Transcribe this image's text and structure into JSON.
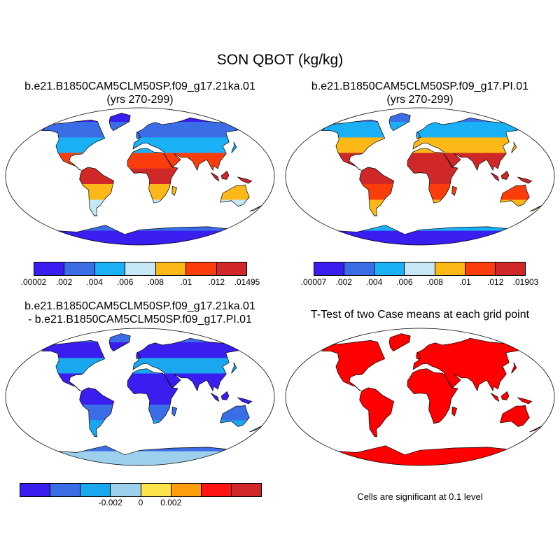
{
  "title": "SON QBOT (kg/kg)",
  "panels": {
    "p1": {
      "line1": "b.e21.B1850CAM5CLM50SP.f09_g17.21ka.01",
      "line2": "(yrs 270-299)",
      "labels": [
        ".00002",
        ".002",
        ".004",
        ".006",
        ".008",
        ".01",
        ".012",
        ".01495"
      ]
    },
    "p2": {
      "line1": "b.e21.B1850CAM5CLM50SP.f09_g17.PI.01",
      "line2": "(yrs 270-299)",
      "labels": [
        ".00007",
        ".002",
        ".004",
        ".006",
        ".008",
        ".01",
        ".012",
        ".01903"
      ]
    },
    "p3": {
      "line1": "b.e21.B1850CAM5CLM50SP.f09_g17.21ka.01",
      "line2": "- b.e21.B1850CAM5CLM50SP.f09_g17.PI.01",
      "labels": [
        "-0.002",
        "0",
        "0.002"
      ]
    },
    "p4": {
      "line1": "T-Test of two Case means at each grid point",
      "note": "Cells are significant at 0.1 level"
    }
  },
  "colors": {
    "abs_scale": [
      "#3a1ef0",
      "#3b6ee6",
      "#19b0f5",
      "#c6e7f5",
      "#fcb817",
      "#fb3d0c",
      "#d02828"
    ],
    "diff_scale": [
      "#3a1ef0",
      "#3b6ee6",
      "#19a8f0",
      "#9dd0ec",
      "#ffe34a",
      "#ff9e0c",
      "#ff1414",
      "#d02828"
    ],
    "significant": "#ff0000",
    "coast": "#000000"
  },
  "fields": {
    "p1": {
      "land": [
        "#3a1ef0",
        "#3b6ee6",
        "#19b0f5",
        "#fb3d0c",
        "#d02828",
        "#fcb817",
        "#c6e7f5",
        "#3b6ee6",
        "#3a1ef0"
      ]
    },
    "p2": {
      "land": [
        "#3b6ee6",
        "#19b0f5",
        "#fcb817",
        "#d02828",
        "#d02828",
        "#fb3d0c",
        "#fcb817",
        "#19b0f5",
        "#3a1ef0"
      ]
    },
    "p3": {
      "land": [
        "#3b6ee6",
        "#3a1ef0",
        "#19a8f0",
        "#3a1ef0",
        "#3a1ef0",
        "#3b6ee6",
        "#19a8f0",
        "#3b6ee6",
        "#9dd0ec"
      ]
    },
    "p4": {
      "land": [
        "#ff0000",
        "#ff0000",
        "#ff0000",
        "#ff0000",
        "#ff0000",
        "#ff0000",
        "#ff0000",
        "#ff0000",
        "#ff0000"
      ]
    }
  }
}
